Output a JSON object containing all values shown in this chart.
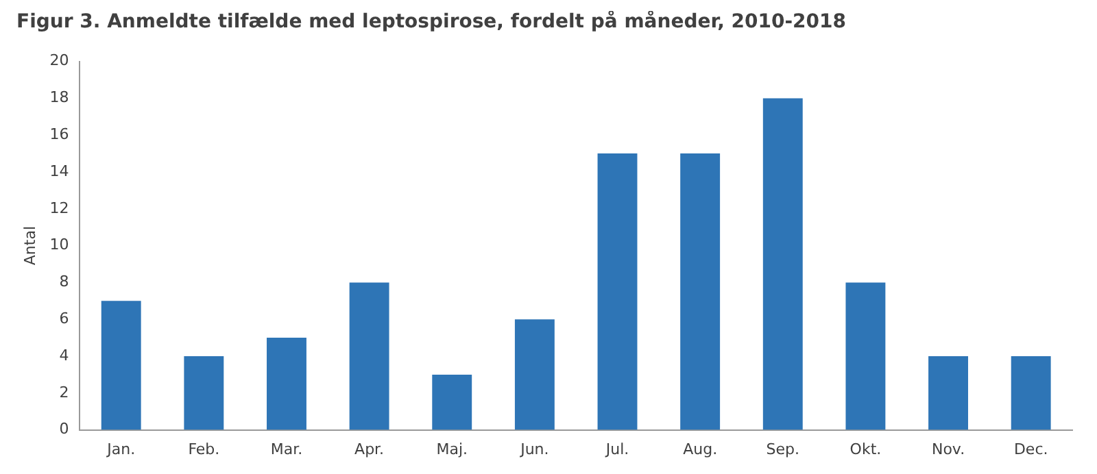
{
  "chart_data": {
    "type": "bar",
    "title": "Figur 3. Anmeldte tilfælde med leptospirose, fordelt på måneder, 2010-2018",
    "ylabel": "Antal",
    "categories": [
      "Jan.",
      "Feb.",
      "Mar.",
      "Apr.",
      "Maj.",
      "Jun.",
      "Jul.",
      "Aug.",
      "Sep.",
      "Okt.",
      "Nov.",
      "Dec."
    ],
    "values": [
      7,
      4,
      5,
      8,
      3,
      6,
      15,
      15,
      18,
      8,
      4,
      4
    ],
    "color": "#2e75b6",
    "ylim": [
      0,
      20
    ],
    "yticks": [
      0,
      2,
      4,
      6,
      8,
      10,
      12,
      14,
      16,
      18,
      20
    ],
    "grid": false,
    "legend": false
  }
}
